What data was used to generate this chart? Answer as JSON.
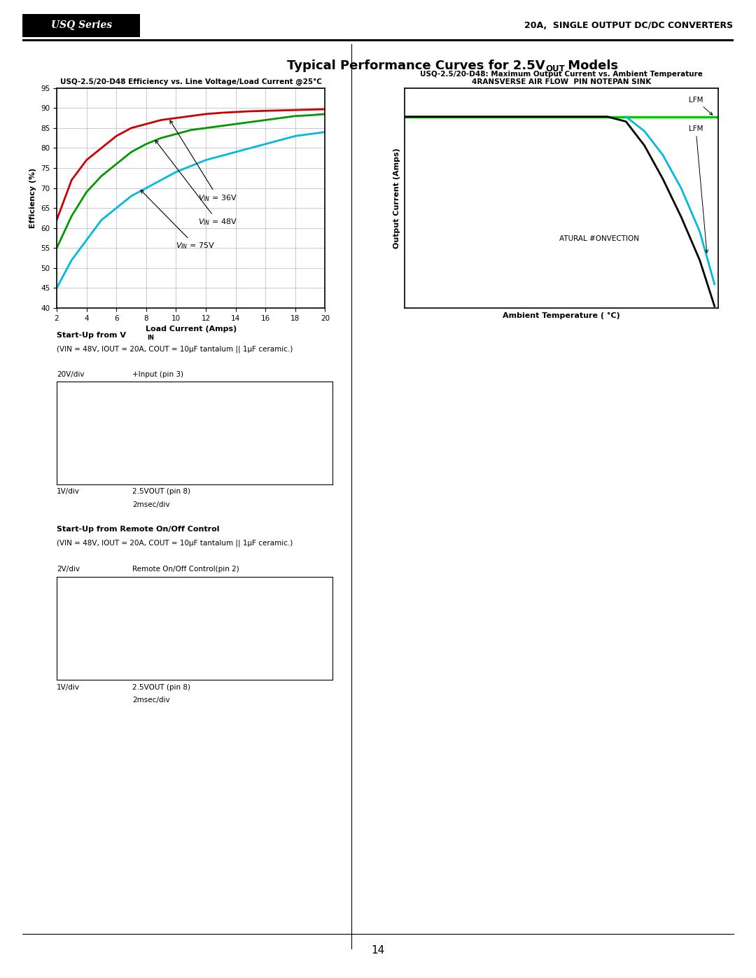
{
  "header_series": "USQ Series",
  "header_right": "20A,  SINGLE OUTPUT DC/DC CONVERTERS",
  "page_number": "14",
  "eff_title": "USQ-2.5/20-D48 Efficiency vs. Line Voltage/Load Current @25°C",
  "eff_xlabel": "Load Current (Amps)",
  "eff_ylabel": "Efficiency (%)",
  "eff_xlim": [
    2,
    20
  ],
  "eff_ylim": [
    40,
    95
  ],
  "eff_xticks": [
    2,
    4,
    6,
    8,
    10,
    12,
    14,
    16,
    18,
    20
  ],
  "eff_yticks": [
    40,
    45,
    50,
    55,
    60,
    65,
    70,
    75,
    80,
    85,
    90,
    95
  ],
  "eff_curve_36V_x": [
    2,
    3,
    4,
    5,
    6,
    7,
    8,
    9,
    10,
    11,
    12,
    13,
    14,
    15,
    16,
    17,
    18,
    19,
    20
  ],
  "eff_curve_36V_y": [
    62,
    72,
    77,
    80,
    83,
    85,
    86,
    87,
    87.5,
    88,
    88.5,
    88.8,
    89,
    89.2,
    89.3,
    89.4,
    89.5,
    89.6,
    89.7
  ],
  "eff_curve_36V_color": "#cc0000",
  "eff_curve_48V_x": [
    2,
    3,
    4,
    5,
    6,
    7,
    8,
    9,
    10,
    11,
    12,
    13,
    14,
    15,
    16,
    17,
    18,
    19,
    20
  ],
  "eff_curve_48V_y": [
    55,
    63,
    69,
    73,
    76,
    79,
    81,
    82.5,
    83.5,
    84.5,
    85,
    85.5,
    86,
    86.5,
    87,
    87.5,
    88,
    88.2,
    88.5
  ],
  "eff_curve_48V_color": "#009900",
  "eff_curve_75V_x": [
    2,
    3,
    4,
    5,
    6,
    7,
    8,
    9,
    10,
    11,
    12,
    13,
    14,
    15,
    16,
    17,
    18,
    19,
    20
  ],
  "eff_curve_75V_y": [
    45,
    52,
    57,
    62,
    65,
    68,
    70,
    72,
    74,
    75.5,
    77,
    78,
    79,
    80,
    81,
    82,
    83,
    83.5,
    84
  ],
  "eff_curve_75V_color": "#00bbdd",
  "temp_title": "USQ-2.5/20-D48: Maximum Output Current vs. Ambient Temperature",
  "temp_subtitle": "4RANSVERSE AIR FLOW  PIN NOTEPAN SINK",
  "temp_xlabel": "Ambient Temperature ( °C)",
  "temp_ylabel": "Output Current (Amps)",
  "startup_vin_title": "Start-Up from VIN",
  "startup_vin_subtitle": "(VIN = 48V, IOUT = 20A, COUT = 10μF tantalum || 1μF ceramic.)",
  "startup_vin_ch1_label": "+Input (pin 3)",
  "startup_vin_ch1_scale": "20V/div",
  "startup_vin_ch2_label": "2.5VOUT (pin 8)",
  "startup_vin_ch2_scale": "1V/div",
  "startup_vin_time": "2msec/div",
  "startup_remote_title": "Start-Up from Remote On/Off Control",
  "startup_remote_subtitle": "(VIN = 48V, IOUT = 20A, COUT = 10μF tantalum || 1μF ceramic.)",
  "startup_remote_ch1_label": "Remote On/Off Control(pin 2)",
  "startup_remote_ch1_scale": "2V/div",
  "startup_remote_ch2_label": "2.5VOUT (pin 8)",
  "startup_remote_ch2_scale": "1V/div",
  "startup_remote_time": "2msec/div",
  "bg_color": "#ffffff"
}
